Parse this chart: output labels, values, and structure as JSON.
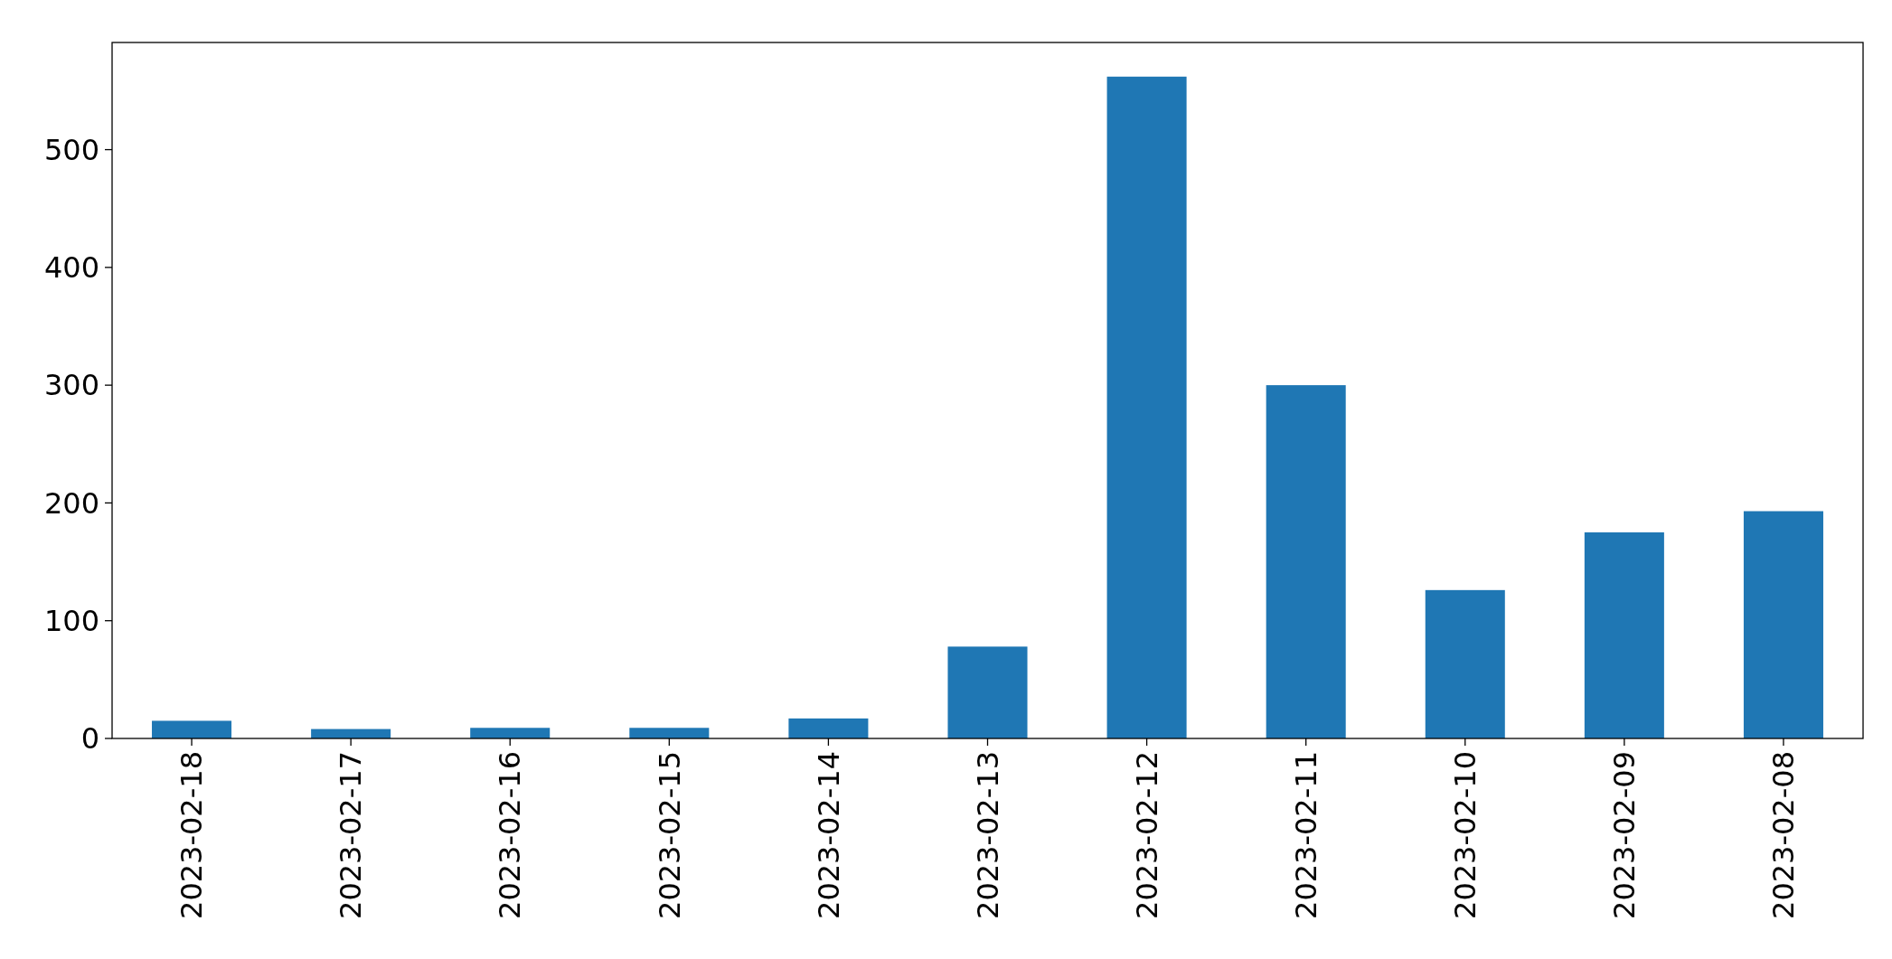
{
  "chart_data": {
    "type": "bar",
    "categories": [
      "2023-02-18",
      "2023-02-17",
      "2023-02-16",
      "2023-02-15",
      "2023-02-14",
      "2023-02-13",
      "2023-02-12",
      "2023-02-11",
      "2023-02-10",
      "2023-02-09",
      "2023-02-08"
    ],
    "values": [
      15,
      8,
      9,
      9,
      17,
      78,
      562,
      300,
      126,
      175,
      193
    ],
    "color": "#1f77b4",
    "ylim": [
      0,
      591
    ],
    "yticks": [
      0,
      100,
      200,
      300,
      400,
      500
    ],
    "grid": false
  }
}
